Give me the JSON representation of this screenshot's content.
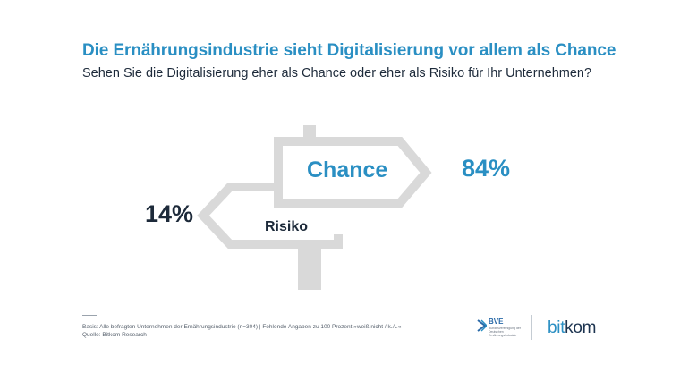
{
  "header": {
    "title": "Die Ernährungsindustrie sieht Digitalisierung vor allem als Chance",
    "subtitle": "Sehen Sie die Digitalisierung eher als Chance oder eher als Risiko für Ihr Unternehmen?"
  },
  "chart_data": {
    "type": "pie",
    "title": "Die Ernährungsindustrie sieht Digitalisierung vor allem als Chance",
    "subtitle": "Sehen Sie die Digitalisierung eher als Chance oder eher als Risiko für Ihr Unternehmen?",
    "categories": [
      "Chance",
      "Risiko"
    ],
    "values": [
      84,
      14
    ],
    "value_labels": [
      "84%",
      "14%"
    ],
    "unit": "%"
  },
  "colors": {
    "accent": "#2a8fc3",
    "dark": "#1d2a3a",
    "sign": "#d9d9d9"
  },
  "footer": {
    "basis": "Basis: Alle befragten Unternehmen der Ernährungsindustrie (n=304) | Fehlende Angaben zu 100 Prozent »weiß nicht / k.A.«",
    "source": "Quelle: Bitkom Research",
    "bve_name": "BVE",
    "bve_sub": "Bundesvereinigung der Deutschen Ernährungsindustrie",
    "bitkom_part1": "bit",
    "bitkom_part2": "kom"
  }
}
